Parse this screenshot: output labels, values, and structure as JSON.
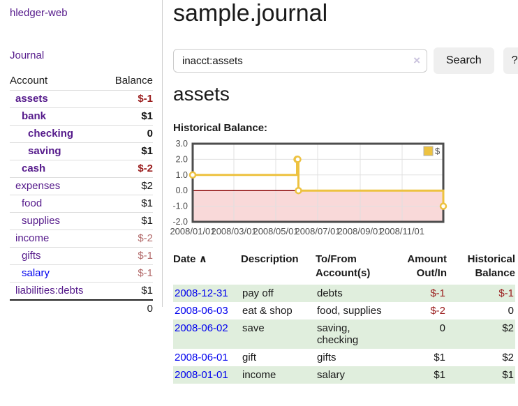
{
  "app": {
    "brand": "hledger-web"
  },
  "sidebar": {
    "nav_journal": "Journal",
    "accounts_table": {
      "headers": {
        "account": "Account",
        "balance": "Balance"
      },
      "rows": [
        {
          "name": "assets",
          "balance": "$-1",
          "indent": 1,
          "bold": true,
          "name_class": "lnk-purple",
          "balance_class": "neg"
        },
        {
          "name": "bank",
          "balance": "$1",
          "indent": 2,
          "bold": true,
          "name_class": "lnk-purple",
          "balance_class": "pos"
        },
        {
          "name": "checking",
          "balance": "0",
          "indent": 3,
          "bold": true,
          "name_class": "lnk-purple",
          "balance_class": "pos"
        },
        {
          "name": "saving",
          "balance": "$1",
          "indent": 3,
          "bold": true,
          "name_class": "lnk-purple",
          "balance_class": "pos"
        },
        {
          "name": "cash",
          "balance": "$-2",
          "indent": 2,
          "bold": true,
          "name_class": "lnk-purple",
          "balance_class": "neg"
        },
        {
          "name": "expenses",
          "balance": "$2",
          "indent": 1,
          "bold": false,
          "name_class": "lnk-purple",
          "balance_class": "pos"
        },
        {
          "name": "food",
          "balance": "$1",
          "indent": 2,
          "bold": false,
          "name_class": "lnk-purple",
          "balance_class": "pos"
        },
        {
          "name": "supplies",
          "balance": "$1",
          "indent": 2,
          "bold": false,
          "name_class": "lnk-purple",
          "balance_class": "pos"
        },
        {
          "name": "income",
          "balance": "$-2",
          "indent": 1,
          "bold": false,
          "name_class": "lnk-purple",
          "balance_class": "neg-lite"
        },
        {
          "name": "gifts",
          "balance": "$-1",
          "indent": 2,
          "bold": false,
          "name_class": "lnk-purple",
          "balance_class": "neg-lite"
        },
        {
          "name": "salary",
          "balance": "$-1",
          "indent": 2,
          "bold": false,
          "name_class": "lnk-blue",
          "balance_class": "neg-lite"
        },
        {
          "name": "liabilities:debts",
          "balance": "$1",
          "indent": 1,
          "bold": false,
          "name_class": "lnk-purple",
          "balance_class": "pos"
        }
      ],
      "total": "0"
    }
  },
  "header": {
    "title": "sample.journal"
  },
  "search": {
    "value": "inacct:assets",
    "clear_icon": "×",
    "button_label": "Search",
    "help_label": "?"
  },
  "account_page": {
    "heading": "assets"
  },
  "chart_data": {
    "type": "line",
    "step": true,
    "title": "Historical Balance:",
    "series": [
      {
        "name": "$",
        "color": "#EDC240",
        "points": [
          [
            "2008-01-01",
            1
          ],
          [
            "2008-06-01",
            2
          ],
          [
            "2008-06-02",
            2
          ],
          [
            "2008-06-03",
            0
          ],
          [
            "2008-12-31",
            -1
          ]
        ]
      }
    ],
    "xlim": [
      "2008-01-01",
      "2008-12-31"
    ],
    "ylim": [
      -2,
      3
    ],
    "yticks": [
      {
        "v": 3,
        "label": "3.0"
      },
      {
        "v": 2,
        "label": "2.0"
      },
      {
        "v": 1,
        "label": "1.0"
      },
      {
        "v": 0,
        "label": "0.0"
      },
      {
        "v": -1,
        "label": "-1.0"
      },
      {
        "v": -2,
        "label": "-2.0"
      }
    ],
    "xticks": [
      {
        "d": "2008-01-01",
        "label": "2008/01/01"
      },
      {
        "d": "2008-03-01",
        "label": "2008/03/01"
      },
      {
        "d": "2008-05-01",
        "label": "2008/05/01"
      },
      {
        "d": "2008-07-01",
        "label": "2008/07/01"
      },
      {
        "d": "2008-09-01",
        "label": "2008/09/01"
      },
      {
        "d": "2008-11-01",
        "label": "2008/11/01"
      }
    ],
    "legend": {
      "position": "top-right",
      "label": "$"
    },
    "grid": true,
    "colors": {
      "line": "#EDC240",
      "marker_fill": "#ffffff",
      "marker_stroke": "#EDC240",
      "zero_line": "#8b0000",
      "negative_region": "#f9d9d9",
      "border": "#4d4d4d",
      "gridline": "#e0e0e0",
      "tick_text": "#4d4d4d"
    }
  },
  "register": {
    "columns": [
      "Date",
      "Description",
      "To/From\nAccount(s)",
      "Amount\nOut/In",
      "Historical\nBalance"
    ],
    "sort_icon": "∧",
    "rows": [
      {
        "date": "2008-12-31",
        "description": "pay off",
        "accounts": "debts",
        "amount": "$-1",
        "balance": "$-1",
        "amount_class": "neg",
        "balance_class": "neg"
      },
      {
        "date": "2008-06-03",
        "description": "eat & shop",
        "accounts": "food, supplies",
        "amount": "$-2",
        "balance": "0",
        "amount_class": "neg",
        "balance_class": "pos"
      },
      {
        "date": "2008-06-02",
        "description": "save",
        "accounts": "saving,\nchecking",
        "amount": "0",
        "balance": "$2",
        "amount_class": "pos",
        "balance_class": "pos"
      },
      {
        "date": "2008-06-01",
        "description": "gift",
        "accounts": "gifts",
        "amount": "$1",
        "balance": "$2",
        "amount_class": "pos",
        "balance_class": "pos"
      },
      {
        "date": "2008-01-01",
        "description": "income",
        "accounts": "salary",
        "amount": "$1",
        "balance": "$1",
        "amount_class": "pos",
        "balance_class": "pos"
      }
    ]
  },
  "colors": {
    "link_purple": "#551a8b",
    "link_blue": "#0000ee",
    "stripe_green": "#e0eedd",
    "negative_red": "#9a1c1c"
  }
}
